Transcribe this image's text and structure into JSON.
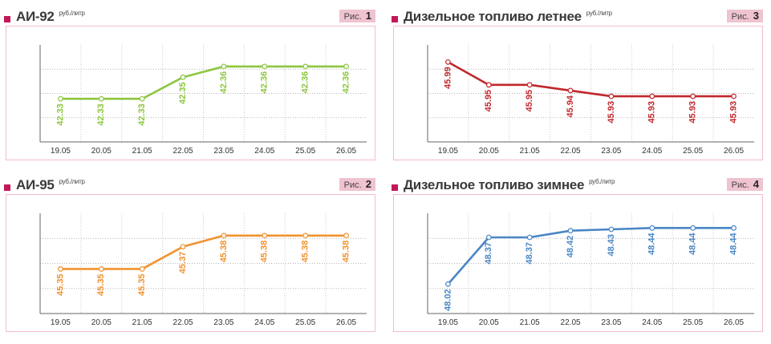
{
  "charts": [
    {
      "title": "АИ-92",
      "unit": "руб./литр",
      "fig_word": "Рис.",
      "fig_num": "1",
      "color": "#8cc63f",
      "chart_data": {
        "type": "line",
        "categories": [
          "19.05",
          "20.05",
          "21.05",
          "22.05",
          "23.05",
          "24.05",
          "25.05",
          "26.05"
        ],
        "series": [
          {
            "values": [
              42.33,
              42.33,
              42.33,
              42.35,
              42.36,
              42.36,
              42.36,
              42.36
            ]
          }
        ],
        "ylim": [
          42.29,
          42.38
        ],
        "grid": true
      }
    },
    {
      "title": "АИ-95",
      "unit": "руб./литр",
      "fig_word": "Рис.",
      "fig_num": "2",
      "color": "#f0922e",
      "chart_data": {
        "type": "line",
        "categories": [
          "19.05",
          "20.05",
          "21.05",
          "22.05",
          "23.05",
          "24.05",
          "25.05",
          "26.05"
        ],
        "series": [
          {
            "values": [
              45.35,
              45.35,
              45.35,
              45.37,
              45.38,
              45.38,
              45.38,
              45.38
            ]
          }
        ],
        "ylim": [
          45.31,
          45.4
        ],
        "grid": true
      }
    },
    {
      "title": "Дизельное топливо летнее",
      "unit": "руб./литр",
      "fig_word": "Рис.",
      "fig_num": "3",
      "color": "#c1272d",
      "chart_data": {
        "type": "line",
        "categories": [
          "19.05",
          "20.05",
          "21.05",
          "22.05",
          "23.05",
          "24.05",
          "25.05",
          "26.05"
        ],
        "series": [
          {
            "values": [
              45.99,
              45.95,
              45.95,
              45.94,
              45.93,
              45.93,
              45.93,
              45.93
            ]
          }
        ],
        "ylim": [
          45.85,
          46.02
        ],
        "grid": true
      }
    },
    {
      "title": "Дизельное топливо зимнее",
      "unit": "руб./литр",
      "fig_word": "Рис.",
      "fig_num": "4",
      "color": "#4a86c5",
      "chart_data": {
        "type": "line",
        "categories": [
          "19.05",
          "20.05",
          "21.05",
          "22.05",
          "23.05",
          "24.05",
          "25.05",
          "26.05"
        ],
        "series": [
          {
            "values": [
              48.02,
              48.37,
              48.37,
              48.42,
              48.43,
              48.44,
              48.44,
              48.44
            ]
          }
        ],
        "ylim": [
          47.8,
          48.55
        ],
        "grid": true
      }
    }
  ]
}
